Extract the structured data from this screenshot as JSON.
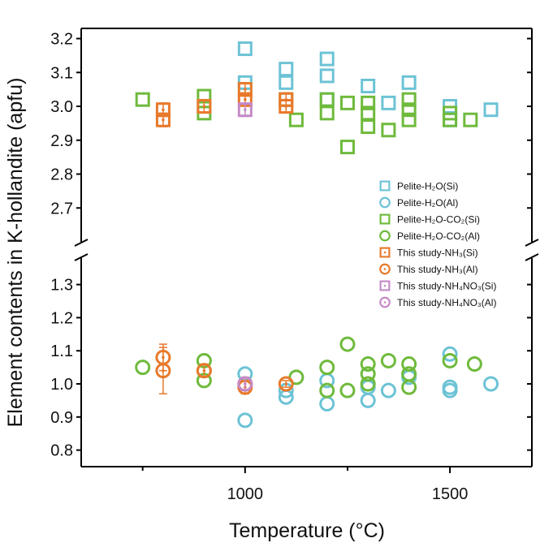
{
  "chart_data": {
    "type": "scatter",
    "title": "",
    "xlabel": "Temperature (°C)",
    "ylabel": "Element contents in K-hollandite (apfu)",
    "xlim": [
      600,
      1700
    ],
    "x_ticks": [
      1000,
      1500
    ],
    "y_axis_break": {
      "lower_range": [
        0.75,
        1.38
      ],
      "upper_range": [
        2.6,
        3.23
      ]
    },
    "y_ticks_upper": [
      "3.2",
      "3.1",
      "3.0",
      "2.9",
      "2.8",
      "2.7"
    ],
    "y_ticks_lower": [
      "1.3",
      "1.2",
      "1.1",
      "1.0",
      "0.9",
      "0.8"
    ],
    "legend_position": "lower-right of upper panel",
    "colors": {
      "pelite_h2o": "#6cc3d5",
      "pelite_h2o_co2": "#6fba3c",
      "this_study_nh3": "#e8792b",
      "this_study_nh4no3": "#c58ac8"
    },
    "series": [
      {
        "name": "Pelite-H₂O(Si)",
        "marker": "square",
        "filled": false,
        "color": "#6cc3d5",
        "points": [
          [
            1000,
            3.17
          ],
          [
            1000,
            3.07
          ],
          [
            1100,
            3.11
          ],
          [
            1100,
            3.07
          ],
          [
            1200,
            3.14
          ],
          [
            1200,
            3.09
          ],
          [
            1200,
            3.02
          ],
          [
            1300,
            3.06
          ],
          [
            1350,
            3.01
          ],
          [
            1400,
            3.07
          ],
          [
            1500,
            3.0
          ],
          [
            1500,
            2.96
          ],
          [
            1600,
            2.99
          ]
        ]
      },
      {
        "name": "Pelite-H₂O(Al)",
        "marker": "circle",
        "filled": false,
        "color": "#6cc3d5",
        "points": [
          [
            1000,
            1.03
          ],
          [
            1000,
            0.89
          ],
          [
            1100,
            0.96
          ],
          [
            1100,
            0.98
          ],
          [
            1200,
            1.01
          ],
          [
            1200,
            0.94
          ],
          [
            1300,
            0.95
          ],
          [
            1300,
            0.99
          ],
          [
            1350,
            0.98
          ],
          [
            1400,
            1.02
          ],
          [
            1500,
            1.09
          ],
          [
            1500,
            0.99
          ],
          [
            1500,
            0.98
          ],
          [
            1600,
            1.0
          ]
        ]
      },
      {
        "name": "Pelite-H₂O-CO₂(Si)",
        "marker": "square",
        "filled": false,
        "color": "#6fba3c",
        "points": [
          [
            750,
            3.02
          ],
          [
            900,
            3.03
          ],
          [
            900,
            2.98
          ],
          [
            1100,
            3.02
          ],
          [
            1125,
            2.96
          ],
          [
            1200,
            3.02
          ],
          [
            1200,
            2.98
          ],
          [
            1250,
            3.01
          ],
          [
            1250,
            2.88
          ],
          [
            1300,
            3.01
          ],
          [
            1300,
            2.98
          ],
          [
            1300,
            2.94
          ],
          [
            1350,
            2.93
          ],
          [
            1400,
            3.02
          ],
          [
            1400,
            2.99
          ],
          [
            1400,
            2.96
          ],
          [
            1500,
            2.98
          ],
          [
            1500,
            2.96
          ],
          [
            1550,
            2.96
          ]
        ]
      },
      {
        "name": "Pelite-H₂O-CO₂(Al)",
        "marker": "circle",
        "filled": false,
        "color": "#6fba3c",
        "points": [
          [
            750,
            1.05
          ],
          [
            900,
            1.07
          ],
          [
            900,
            1.04
          ],
          [
            900,
            1.01
          ],
          [
            1125,
            1.02
          ],
          [
            1200,
            1.05
          ],
          [
            1200,
            0.98
          ],
          [
            1250,
            1.12
          ],
          [
            1250,
            0.98
          ],
          [
            1300,
            1.06
          ],
          [
            1300,
            1.03
          ],
          [
            1300,
            1.0
          ],
          [
            1350,
            1.07
          ],
          [
            1400,
            1.06
          ],
          [
            1400,
            1.03
          ],
          [
            1400,
            0.99
          ],
          [
            1500,
            1.07
          ],
          [
            1560,
            1.06
          ]
        ]
      },
      {
        "name": "This study-NH₃(Si)",
        "marker": "square-dot",
        "filled": false,
        "color": "#e8792b",
        "points": [
          [
            800,
            2.99,
            0.02
          ],
          [
            800,
            2.96,
            0.02
          ],
          [
            900,
            3.0,
            0.02
          ],
          [
            1000,
            3.05,
            0.02
          ],
          [
            1000,
            3.02,
            0.02
          ],
          [
            1100,
            3.02,
            0.02
          ],
          [
            1100,
            3.0,
            0.02
          ]
        ]
      },
      {
        "name": "This study-NH₃(Al)",
        "marker": "circle-dot",
        "filled": false,
        "color": "#e8792b",
        "points": [
          [
            800,
            1.08,
            0.04
          ],
          [
            800,
            1.04,
            0.07
          ],
          [
            900,
            1.04,
            0.02
          ],
          [
            1000,
            1.0,
            0.02
          ],
          [
            1000,
            0.99,
            0.02
          ],
          [
            1100,
            1.0,
            0.01
          ]
        ]
      },
      {
        "name": "This study-NH₄NO₃(Si)",
        "marker": "square-dot",
        "filled": false,
        "color": "#c58ac8",
        "points": [
          [
            1000,
            2.99,
            0.02
          ]
        ]
      },
      {
        "name": "This study-NH₄NO₃(Al)",
        "marker": "circle-dot",
        "filled": false,
        "color": "#c58ac8",
        "points": [
          [
            1000,
            1.0,
            0.02
          ]
        ]
      }
    ]
  }
}
